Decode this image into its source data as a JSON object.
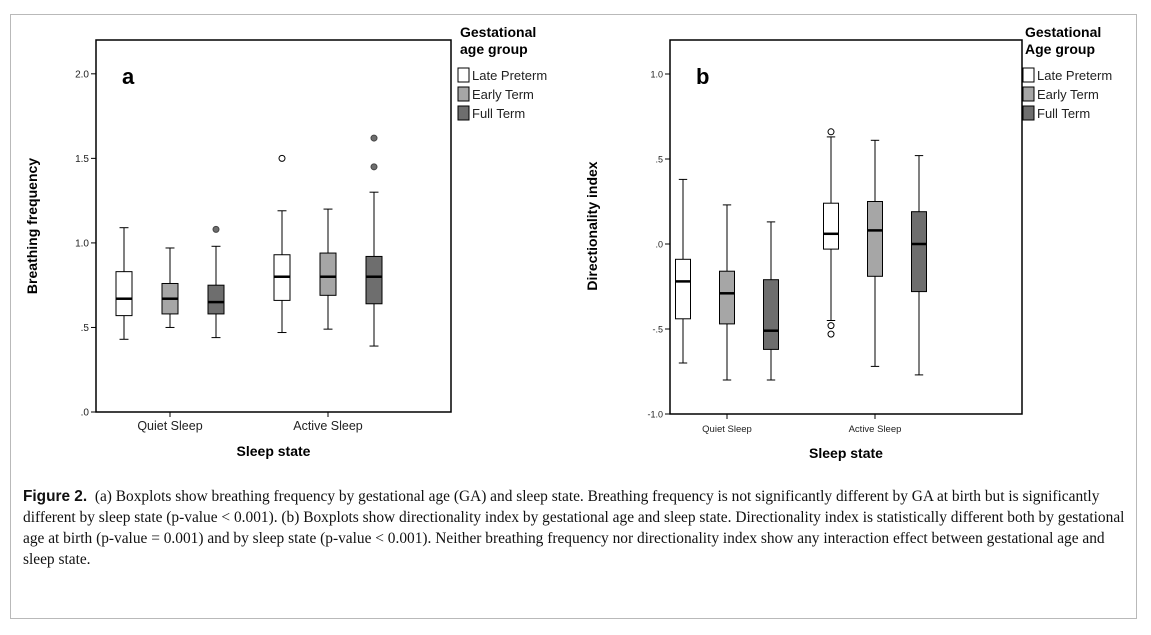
{
  "figure": {
    "caption_label": "Figure 2.",
    "caption_text": "(a) Boxplots show breathing frequency by gestational age (GA) and sleep state. Breathing frequency is not significantly different by GA at birth but is significantly different by sleep state (p-value < 0.001). (b) Boxplots show directionality index by gestational age and sleep state. Directionality index is statistically different both by gestational age at birth (p-value = 0.001) and by sleep state (p-value < 0.001). Neither breathing frequency nor directionality index show any interaction effect between gestational age and sleep state."
  },
  "colors": {
    "Late Preterm": "#ffffff",
    "Early Term": "#a6a6a6",
    "Full Term": "#6e6e6e"
  },
  "chart_data": [
    {
      "type": "boxplot",
      "panel_label": "a",
      "xlabel": "Sleep state",
      "ylabel": "Breathing frequency",
      "categories": [
        "Quiet Sleep",
        "Active Sleep"
      ],
      "ylim": [
        0,
        2.2
      ],
      "yticks": [
        0,
        0.5,
        1.0,
        1.5,
        2.0
      ],
      "ytick_labels": [
        ".0",
        ".5",
        "1.0",
        "1.5",
        "2.0"
      ],
      "legend_title": [
        "Gestational",
        "age group"
      ],
      "legend_position": "right",
      "series": [
        {
          "name": "Late Preterm",
          "boxes": [
            {
              "min": 0.43,
              "q1": 0.57,
              "median": 0.67,
              "q3": 0.83,
              "max": 1.09,
              "outliers": []
            },
            {
              "min": 0.47,
              "q1": 0.66,
              "median": 0.8,
              "q3": 0.93,
              "max": 1.19,
              "outliers": [
                1.5
              ]
            }
          ]
        },
        {
          "name": "Early Term",
          "boxes": [
            {
              "min": 0.5,
              "q1": 0.58,
              "median": 0.67,
              "q3": 0.76,
              "max": 0.97,
              "outliers": []
            },
            {
              "min": 0.49,
              "q1": 0.69,
              "median": 0.8,
              "q3": 0.94,
              "max": 1.2,
              "outliers": []
            }
          ]
        },
        {
          "name": "Full Term",
          "boxes": [
            {
              "min": 0.44,
              "q1": 0.58,
              "median": 0.65,
              "q3": 0.75,
              "max": 0.98,
              "outliers": [
                1.08
              ]
            },
            {
              "min": 0.39,
              "q1": 0.64,
              "median": 0.8,
              "q3": 0.92,
              "max": 1.3,
              "outliers": [
                1.45,
                1.62
              ]
            }
          ]
        }
      ]
    },
    {
      "type": "boxplot",
      "panel_label": "b",
      "xlabel": "Sleep state",
      "ylabel": "Directionality index",
      "categories": [
        "Quiet Sleep",
        "Active Sleep"
      ],
      "ylim": [
        -1.0,
        1.2
      ],
      "yticks": [
        -1.0,
        -0.5,
        0.0,
        0.5,
        1.0
      ],
      "ytick_labels": [
        "-1.0",
        "-.5",
        ".0",
        ".5",
        "1.0"
      ],
      "legend_title": [
        "Gestational",
        "Age group"
      ],
      "legend_position": "right",
      "series": [
        {
          "name": "Late Preterm",
          "boxes": [
            {
              "min": -0.7,
              "q1": -0.44,
              "median": -0.22,
              "q3": -0.09,
              "max": 0.38,
              "outliers": []
            },
            {
              "min": -0.45,
              "q1": -0.03,
              "median": 0.06,
              "q3": 0.24,
              "max": 0.63,
              "outliers": [
                0.66,
                -0.48,
                -0.53
              ]
            }
          ]
        },
        {
          "name": "Early Term",
          "boxes": [
            {
              "min": -0.8,
              "q1": -0.47,
              "median": -0.29,
              "q3": -0.16,
              "max": 0.23,
              "outliers": []
            },
            {
              "min": -0.72,
              "q1": -0.19,
              "median": 0.08,
              "q3": 0.25,
              "max": 0.61,
              "outliers": []
            }
          ]
        },
        {
          "name": "Full Term",
          "boxes": [
            {
              "min": -0.8,
              "q1": -0.62,
              "median": -0.51,
              "q3": -0.21,
              "max": 0.13,
              "outliers": []
            },
            {
              "min": -0.77,
              "q1": -0.28,
              "median": 0.0,
              "q3": 0.19,
              "max": 0.52,
              "outliers": []
            }
          ]
        }
      ]
    }
  ]
}
